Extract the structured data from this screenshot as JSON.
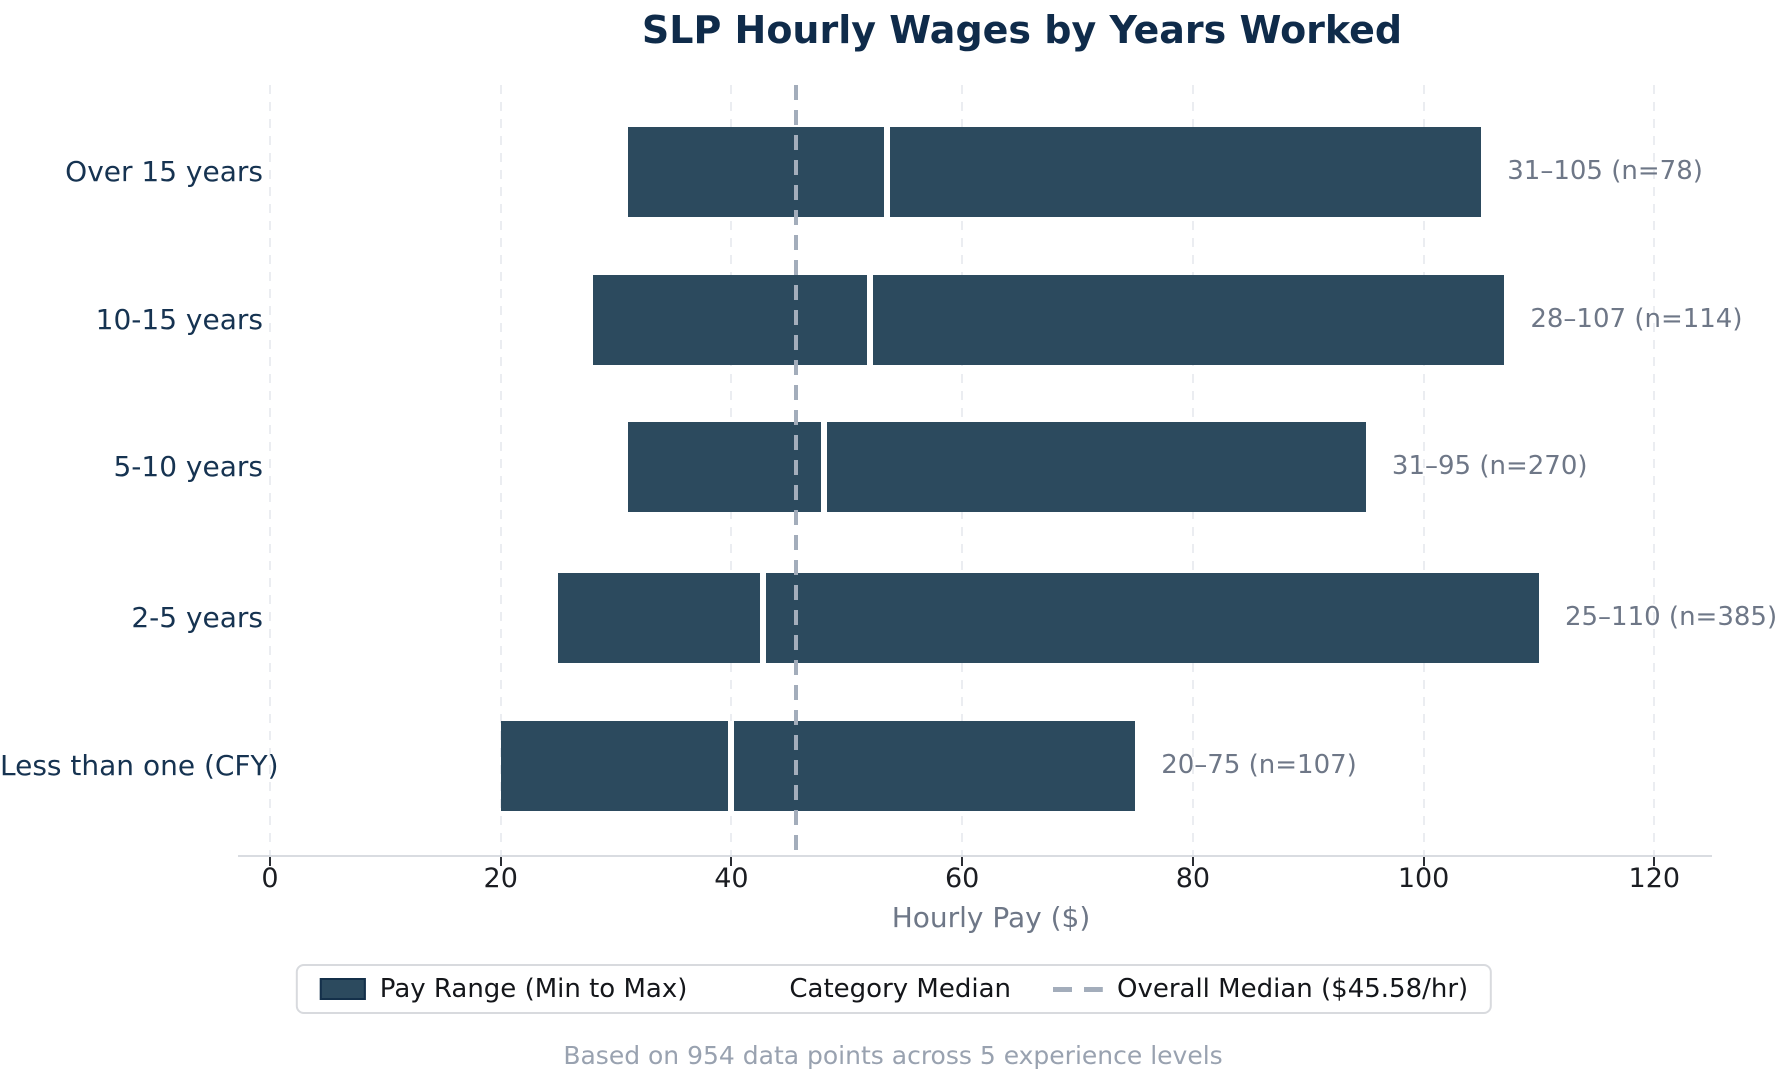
{
  "title": "SLP Hourly Wages by Years Worked",
  "chart_data": {
    "type": "bar",
    "orientation": "horizontal",
    "title": "SLP Hourly Wages by Years Worked",
    "xlabel": "Hourly Pay ($)",
    "ylabel": "",
    "xlim": [
      0,
      125
    ],
    "x_ticks": [
      0,
      20,
      40,
      60,
      80,
      100,
      120
    ],
    "grid": "vertical-dashed",
    "overall_median": 45.58,
    "categories": [
      "Over 15 years",
      "10-15 years",
      "5-10 years",
      "2-5 years",
      "Less than one (CFY)"
    ],
    "rows": [
      {
        "category": "Over 15 years",
        "min": 31,
        "max": 105,
        "median": 53.5,
        "n": 78,
        "annotation": "31–105 (n=78)"
      },
      {
        "category": "10-15 years",
        "min": 28,
        "max": 107,
        "median": 52,
        "n": 114,
        "annotation": "28–107 (n=114)"
      },
      {
        "category": "5-10 years",
        "min": 31,
        "max": 95,
        "median": 48,
        "n": 270,
        "annotation": "31–95 (n=270)"
      },
      {
        "category": "2-5 years",
        "min": 25,
        "max": 110,
        "median": 42.7,
        "n": 385,
        "annotation": "25–110 (n=385)"
      },
      {
        "category": "Less than one (CFY)",
        "min": 20,
        "max": 75,
        "median": 40,
        "n": 107,
        "annotation": "20–75 (n=107)"
      }
    ]
  },
  "legend": {
    "items": [
      {
        "label": "Pay Range (Min to Max)",
        "swatch": "filled-rect"
      },
      {
        "label": "Category Median",
        "swatch": "white-line"
      },
      {
        "label": "Overall Median ($45.58/hr)",
        "swatch": "dashed-line"
      }
    ]
  },
  "footnote": "Based on 954 data points across 5 experience levels",
  "colors": {
    "bar": "#2c4a5e",
    "title": "#0f2b4a",
    "category_label": "#163351",
    "annotation": "#6e7787",
    "overall_median_line": "#a3adbb",
    "category_median_line": "#ffffff",
    "gridline": "#ebedf1",
    "footnote": "#99a2b0"
  }
}
